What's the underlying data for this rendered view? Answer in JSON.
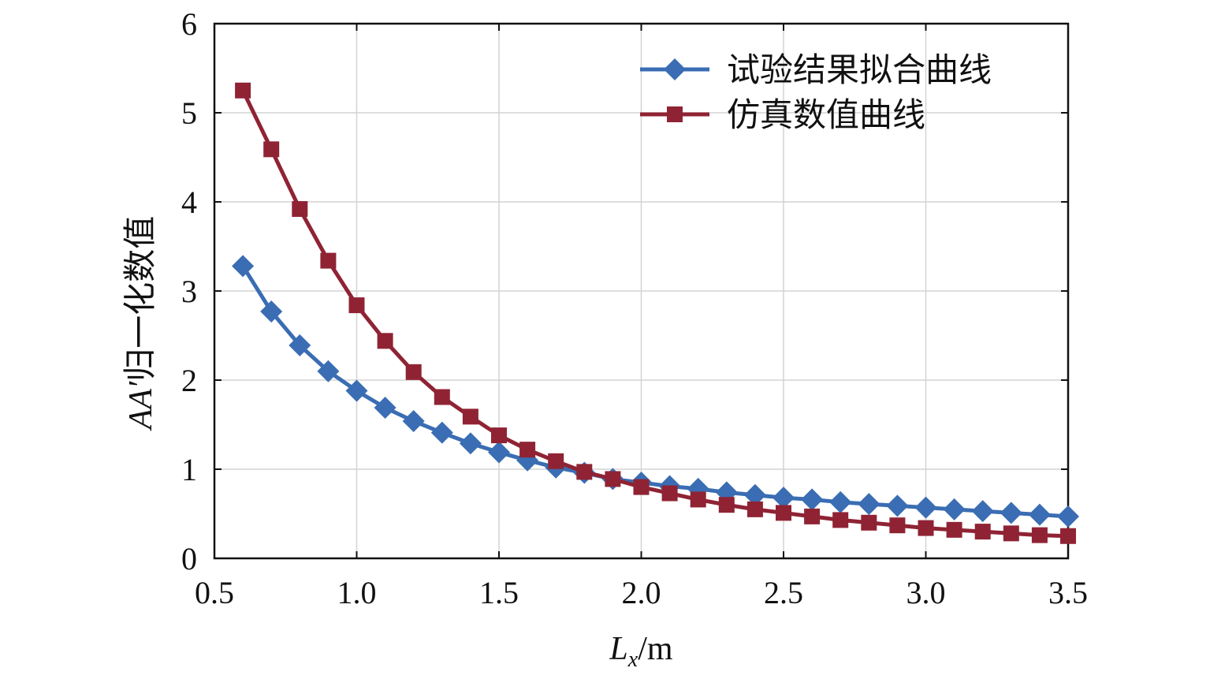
{
  "chart_data": {
    "type": "line",
    "title": "",
    "xlabel_var": "L",
    "xlabel_sub": "x",
    "xlabel_unit": "/m",
    "ylabel_var": "AA′",
    "ylabel_text": "归一化数值",
    "xlim": [
      0.5,
      3.5
    ],
    "ylim": [
      0,
      6
    ],
    "xticks": [
      "0.5",
      "1.0",
      "1.5",
      "2.0",
      "2.5",
      "3.0",
      "3.5"
    ],
    "yticks": [
      "0",
      "1",
      "2",
      "3",
      "4",
      "5",
      "6"
    ],
    "grid": true,
    "legend_position": "top-right",
    "x": [
      0.6,
      0.7,
      0.8,
      0.9,
      1.0,
      1.1,
      1.2,
      1.3,
      1.4,
      1.5,
      1.6,
      1.7,
      1.8,
      1.9,
      2.0,
      2.1,
      2.2,
      2.3,
      2.4,
      2.5,
      2.6,
      2.7,
      2.8,
      2.9,
      3.0,
      3.1,
      3.2,
      3.3,
      3.4,
      3.5
    ],
    "series": [
      {
        "name": "试验结果拟合曲线",
        "color": "#3a6db3",
        "marker": "diamond",
        "values": [
          3.28,
          2.77,
          2.39,
          2.1,
          1.88,
          1.69,
          1.54,
          1.41,
          1.29,
          1.19,
          1.1,
          1.02,
          0.96,
          0.89,
          0.85,
          0.81,
          0.78,
          0.74,
          0.71,
          0.68,
          0.66,
          0.63,
          0.61,
          0.59,
          0.57,
          0.55,
          0.53,
          0.51,
          0.49,
          0.47
        ]
      },
      {
        "name": "仿真数值曲线",
        "color": "#8f2334",
        "marker": "square",
        "values": [
          5.25,
          4.59,
          3.92,
          3.34,
          2.84,
          2.44,
          2.09,
          1.81,
          1.59,
          1.38,
          1.22,
          1.09,
          0.97,
          0.89,
          0.8,
          0.73,
          0.66,
          0.6,
          0.55,
          0.51,
          0.47,
          0.43,
          0.4,
          0.37,
          0.34,
          0.32,
          0.3,
          0.28,
          0.26,
          0.25
        ]
      }
    ]
  }
}
